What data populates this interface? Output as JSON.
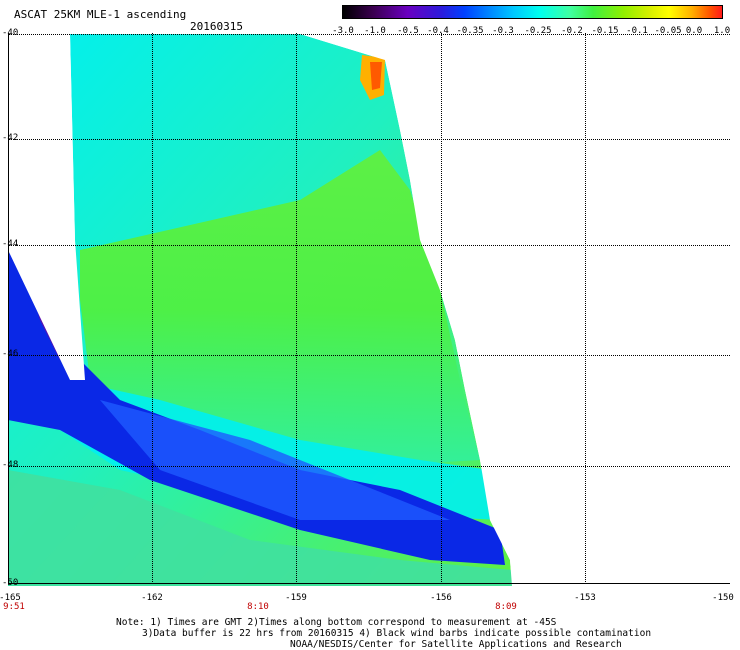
{
  "header": {
    "title": "ASCAT 25KM MLE-1 ascending",
    "date": "20160315"
  },
  "colorbar": {
    "labels": [
      "-3.0",
      "-1.0",
      "-0.5",
      "-0.4",
      "-0.35",
      "-0.3",
      "-0.25",
      "-0.2",
      "-0.15",
      "-0.1",
      "-0.05",
      "0.0",
      "1.0"
    ]
  },
  "axes": {
    "y_ticks": [
      "-40",
      "-42",
      "-44",
      "-46",
      "-48",
      "-50"
    ],
    "x_ticks": [
      "-165",
      "-162",
      "-159",
      "-156",
      "-153",
      "-150"
    ],
    "time_labels": [
      "9:51",
      "8:10",
      "8:09"
    ]
  },
  "notes": {
    "line1": "Note: 1) Times are GMT 2)Times along bottom correspond to measurement at -45S",
    "line2": "3)Data buffer is 22 hrs from 20160315 4) Black wind barbs indicate possible contamination",
    "line3": "NOAA/NESDIS/Center for Satellite Applications and Research"
  },
  "colors": {
    "background": "#ffffff",
    "time_label": "#c00000",
    "blue_band": "#0a28e6",
    "green_field": "#40f040",
    "cyan_field": "#00f0f0"
  }
}
